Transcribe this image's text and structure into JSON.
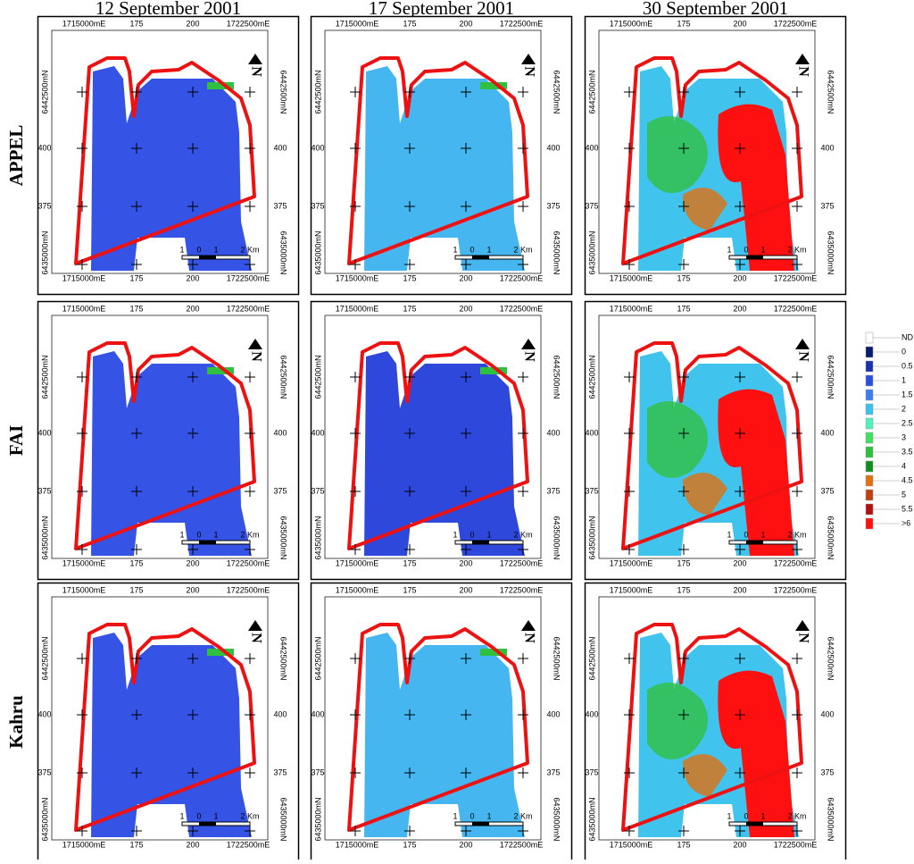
{
  "columns": [
    "12 September 2001",
    "17 September 2001",
    "30 September 2001"
  ],
  "rows": [
    "APPEL",
    "FAI",
    "Kahru"
  ],
  "panel": {
    "x_labels": [
      "1715000mE",
      "175",
      "200",
      "1722500mE"
    ],
    "y_labels": [
      "6442500mN",
      "400",
      "375",
      "6435000mN"
    ],
    "scale": [
      "1",
      "0",
      "1",
      "2 Km"
    ]
  },
  "legend": {
    "items": [
      {
        "label": "ND",
        "color": "#ffffff"
      },
      {
        "label": "0",
        "color": "#0a1a6e"
      },
      {
        "label": "0.5",
        "color": "#1a2fb0"
      },
      {
        "label": "1",
        "color": "#2d4fe0"
      },
      {
        "label": "1.5",
        "color": "#3c7ef0"
      },
      {
        "label": "2",
        "color": "#3cc0f0"
      },
      {
        "label": "2.5",
        "color": "#50f0c0"
      },
      {
        "label": "3",
        "color": "#40e060"
      },
      {
        "label": "3.5",
        "color": "#30c040"
      },
      {
        "label": "4",
        "color": "#109020"
      },
      {
        "label": "4.5",
        "color": "#e07010"
      },
      {
        "label": "5",
        "color": "#c04010"
      },
      {
        "label": "5.5",
        "color": "#b01010"
      },
      {
        "label": ">6",
        "color": "#ff1010"
      }
    ]
  }
}
